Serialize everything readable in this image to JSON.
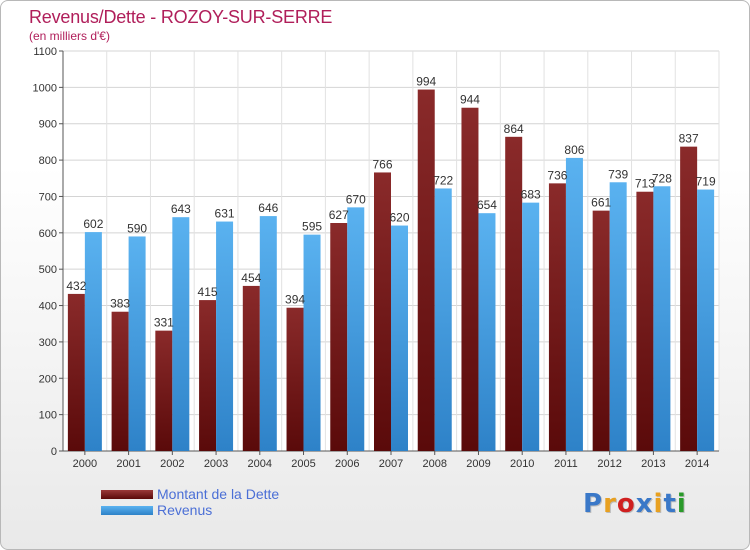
{
  "title": "Revenus/Dette - ROZOY-SUR-SERRE",
  "subtitle": "(en milliers d'€)",
  "logo": {
    "text": "Proxiti",
    "colors": [
      "#3a78c8",
      "#e8a020",
      "#d02020",
      "#3a78c8",
      "#e8a020",
      "#3a78c8",
      "#2a9a2a"
    ]
  },
  "colors": {
    "dette": "#7a1c1c",
    "revenus": "#4aa4e8",
    "title": "#b01e5a",
    "legend_text": "#4b6fd6"
  },
  "chart_data": {
    "type": "bar",
    "title": "Revenus/Dette - ROZOY-SUR-SERRE",
    "ylabel": "(en milliers d'€)",
    "xlabel": "",
    "ylim": [
      0,
      1100
    ],
    "yticks": [
      0,
      100,
      200,
      300,
      400,
      500,
      600,
      700,
      800,
      900,
      1000,
      1100
    ],
    "grid": true,
    "legend_position": "bottom-left",
    "categories": [
      "2000",
      "2001",
      "2002",
      "2003",
      "2004",
      "2005",
      "2006",
      "2007",
      "2008",
      "2009",
      "2010",
      "2011",
      "2012",
      "2013",
      "2014"
    ],
    "series": [
      {
        "name": "Montant de la Dette",
        "values": [
          432,
          383,
          331,
          415,
          454,
          394,
          627,
          766,
          994,
          944,
          864,
          736,
          661,
          713,
          837
        ]
      },
      {
        "name": "Revenus",
        "values": [
          602,
          590,
          643,
          631,
          646,
          595,
          670,
          620,
          722,
          654,
          683,
          806,
          739,
          728,
          719
        ]
      }
    ]
  }
}
